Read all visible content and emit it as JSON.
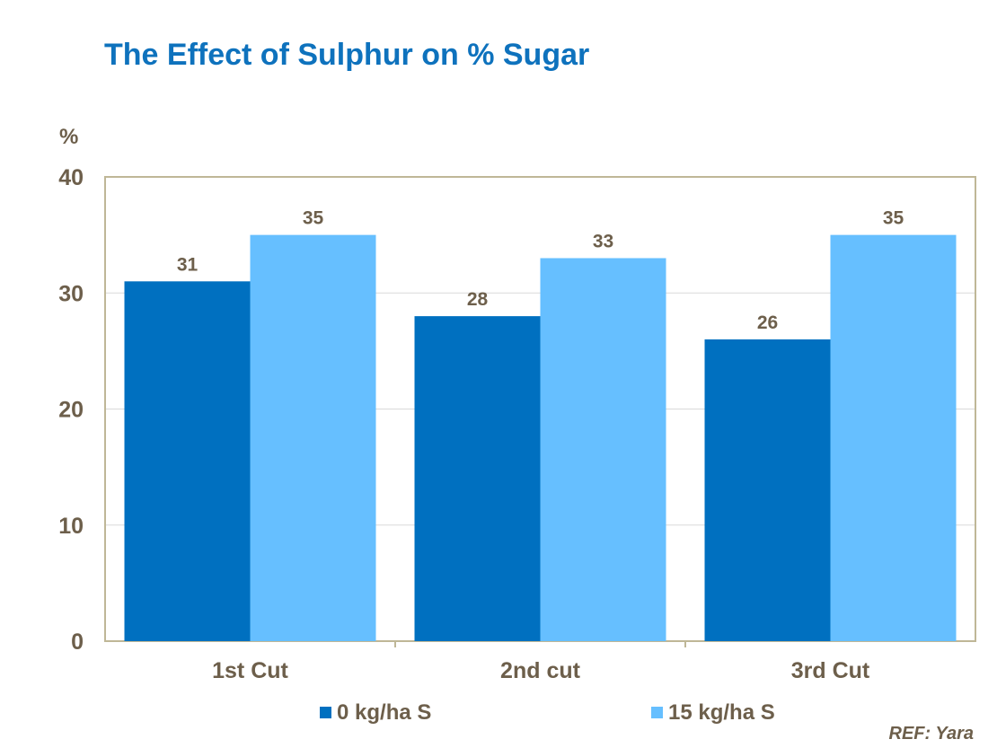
{
  "page": {
    "title": "The Effect of Sulphur on % Sugar",
    "reference": "REF: Yara"
  },
  "chart_data": {
    "type": "bar",
    "title": "The Effect of Sulphur on % Sugar",
    "xlabel": "",
    "ylabel": "%",
    "ylim": [
      0,
      40
    ],
    "yticks": [
      0,
      10,
      20,
      30,
      40
    ],
    "categories": [
      "1st Cut",
      "2nd cut",
      "3rd Cut"
    ],
    "series": [
      {
        "name": "0 kg/ha S",
        "values": [
          31,
          28,
          26
        ],
        "color": "#0070c0"
      },
      {
        "name": "15 kg/ha S",
        "values": [
          35,
          33,
          35
        ],
        "color": "#66bfff"
      }
    ],
    "grid": true,
    "legend": "bottom",
    "data_labels": true,
    "text_color": "#6d5f4b",
    "axis_color": "#bfb797"
  }
}
